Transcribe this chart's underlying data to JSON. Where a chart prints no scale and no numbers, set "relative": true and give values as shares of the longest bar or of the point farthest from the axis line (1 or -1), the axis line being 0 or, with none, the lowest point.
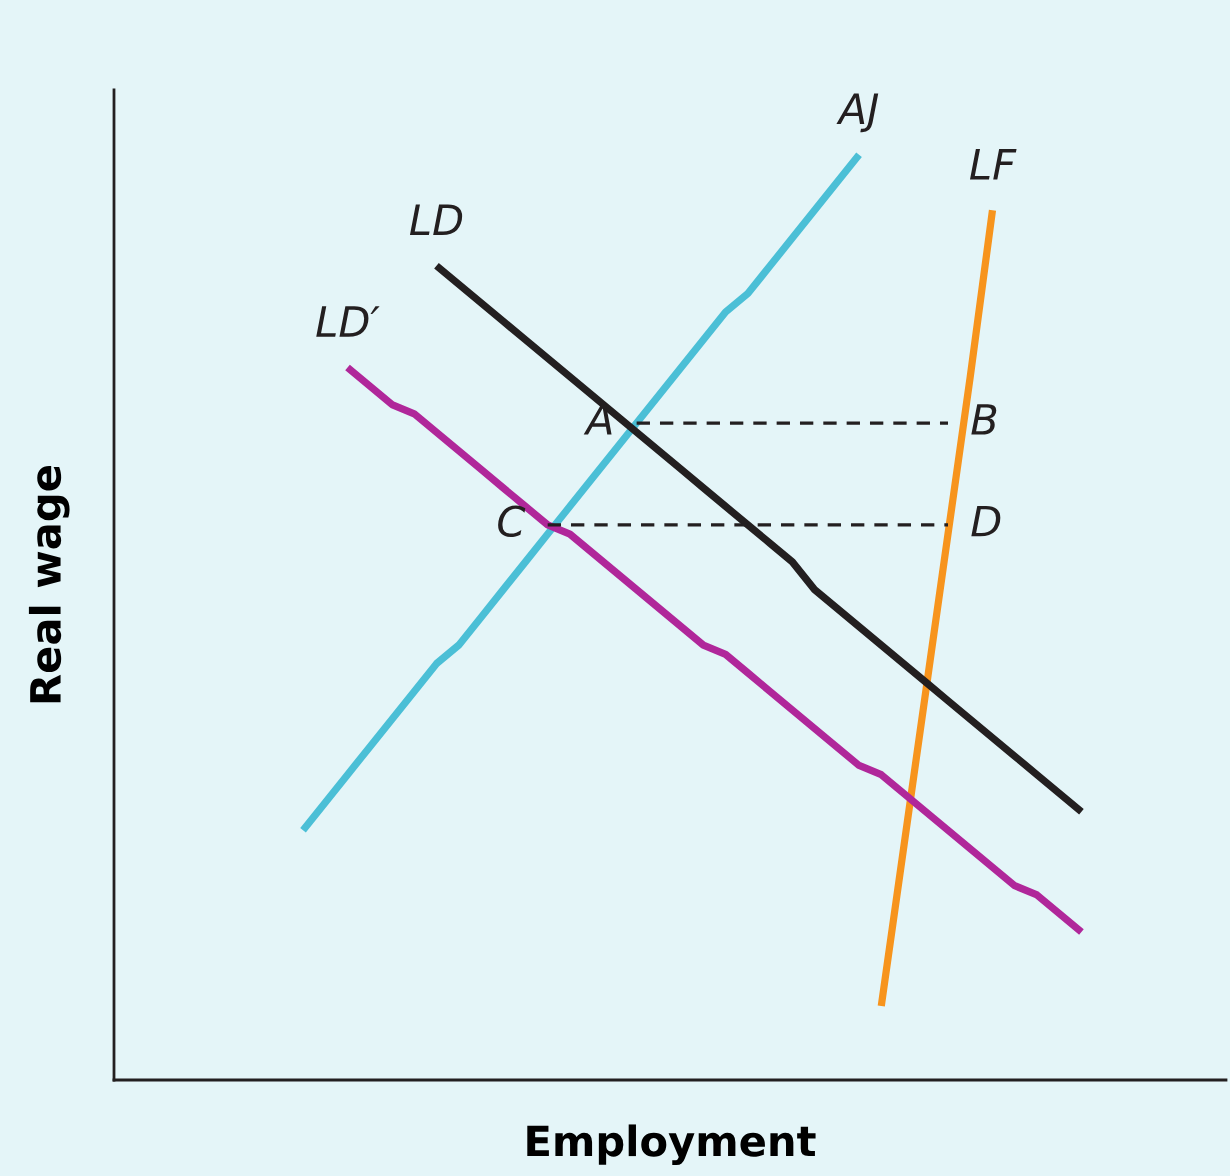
{
  "chart_data": {
    "type": "line",
    "relative": true,
    "xlabel": "Employment",
    "ylabel": "Real wage",
    "tick_labels": false,
    "marker": "none",
    "categories": [
      null,
      null,
      null,
      null,
      null,
      null,
      null,
      null,
      null,
      null,
      null,
      null,
      null,
      null,
      null,
      null,
      null,
      null,
      null,
      null,
      null,
      null,
      null,
      null,
      null,
      null,
      null,
      null,
      null,
      null,
      null,
      null,
      null,
      null,
      null,
      null,
      null,
      null,
      null,
      null,
      null,
      null,
      null,
      null,
      null,
      null,
      null,
      null,
      null,
      null
    ],
    "series": [
      {
        "name": "AJ",
        "color": "#4bbfd6",
        "values": [
          null,
          null,
          null,
          null,
          null,
          null,
          null,
          null,
          0.27,
          0.3,
          0.33,
          0.36,
          0.39,
          0.42,
          0.45,
          0.47,
          0.5,
          0.53,
          0.56,
          0.59,
          0.62,
          0.65,
          0.68,
          0.71,
          0.74,
          0.77,
          0.8,
          0.83,
          0.85,
          0.88,
          0.91,
          0.94,
          0.97,
          1.0,
          null,
          null,
          null,
          null,
          null,
          null,
          null,
          null,
          null,
          null,
          null,
          null,
          null,
          null,
          null,
          null
        ]
      },
      {
        "name": "LF",
        "color": "#f7941d",
        "values": [
          null,
          null,
          null,
          null,
          null,
          null,
          null,
          null,
          null,
          null,
          null,
          null,
          null,
          null,
          null,
          null,
          null,
          null,
          null,
          null,
          null,
          null,
          null,
          null,
          null,
          null,
          null,
          null,
          null,
          null,
          null,
          null,
          null,
          null,
          0.08,
          0.25,
          0.42,
          0.59,
          0.76,
          0.94,
          null,
          null,
          null,
          null,
          null,
          null,
          null,
          null,
          null,
          null
        ]
      },
      {
        "name": "LD",
        "color": "#231f20",
        "values": [
          null,
          null,
          null,
          null,
          null,
          null,
          null,
          null,
          null,
          null,
          null,
          null,
          null,
          null,
          0.88,
          0.86,
          0.84,
          0.82,
          0.8,
          0.78,
          0.76,
          0.74,
          0.72,
          0.7,
          0.68,
          0.66,
          0.64,
          0.62,
          0.6,
          0.58,
          0.56,
          0.53,
          0.51,
          0.49,
          0.47,
          0.45,
          0.43,
          0.41,
          0.39,
          0.37,
          0.35,
          0.33,
          0.31,
          0.29,
          null,
          null,
          null,
          null,
          null,
          null
        ]
      },
      {
        "name": "LD′",
        "color": "#b0279a",
        "values": [
          null,
          null,
          null,
          null,
          null,
          null,
          null,
          null,
          null,
          null,
          0.77,
          0.75,
          0.73,
          0.72,
          0.7,
          0.68,
          0.66,
          0.64,
          0.62,
          0.6,
          0.59,
          0.57,
          0.55,
          0.53,
          0.51,
          0.49,
          0.47,
          0.46,
          0.44,
          0.42,
          0.4,
          0.38,
          0.36,
          0.34,
          0.33,
          0.31,
          0.29,
          0.27,
          0.25,
          0.23,
          0.21,
          0.2,
          0.18,
          0.16,
          null,
          null,
          null,
          null,
          null,
          null
        ]
      },
      {
        "color": "#231f20",
        "line_style": "dashed",
        "values": [
          null,
          null,
          null,
          null,
          null,
          null,
          null,
          null,
          null,
          null,
          null,
          null,
          null,
          null,
          null,
          null,
          null,
          null,
          null,
          null,
          null,
          null,
          null,
          0.71,
          0.71,
          0.71,
          0.71,
          0.71,
          0.71,
          0.71,
          0.71,
          0.71,
          0.71,
          0.71,
          0.71,
          0.71,
          0.71,
          0.71,
          null,
          null,
          null,
          null,
          null,
          null,
          null,
          null,
          null,
          null,
          null,
          null
        ]
      },
      {
        "color": "#231f20",
        "line_style": "dashed",
        "values": [
          null,
          null,
          null,
          null,
          null,
          null,
          null,
          null,
          null,
          null,
          null,
          null,
          null,
          null,
          null,
          null,
          null,
          null,
          null,
          0.6,
          0.6,
          0.6,
          0.6,
          0.6,
          0.6,
          0.6,
          0.6,
          0.6,
          0.6,
          0.6,
          0.6,
          0.6,
          0.6,
          0.6,
          0.6,
          0.6,
          0.6,
          0.6,
          null,
          null,
          null,
          null,
          null,
          null,
          null,
          null,
          null,
          null,
          null,
          null
        ]
      }
    ],
    "annotations": [
      "A",
      "B",
      "C",
      "D"
    ]
  }
}
